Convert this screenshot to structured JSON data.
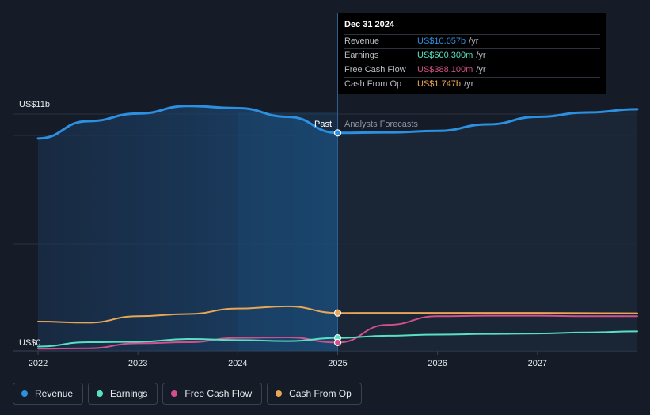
{
  "chart_data": {
    "type": "line",
    "y_axis_labels": {
      "top": "US$11b",
      "bottom": "US$0"
    },
    "ylim": [
      0,
      11
    ],
    "xlim": [
      2022.0,
      2028.0
    ],
    "x_ticks": [
      "2022",
      "2023",
      "2024",
      "2025",
      "2026",
      "2027"
    ],
    "x_tick_values": [
      2022,
      2023,
      2024,
      2025,
      2026,
      2027
    ],
    "past_label": "Past",
    "forecast_label": "Analysts Forecasts",
    "divider_x": 2025.0,
    "series": [
      {
        "name": "Revenue",
        "color": "#2d8fe0",
        "points": [
          [
            2022.0,
            9.8
          ],
          [
            2022.5,
            10.6
          ],
          [
            2023.0,
            10.95
          ],
          [
            2023.5,
            11.3
          ],
          [
            2024.0,
            11.2
          ],
          [
            2024.5,
            10.8
          ],
          [
            2025.0,
            10.057
          ],
          [
            2025.5,
            10.08
          ],
          [
            2026.0,
            10.15
          ],
          [
            2026.5,
            10.45
          ],
          [
            2027.0,
            10.8
          ],
          [
            2027.5,
            11.0
          ],
          [
            2028.0,
            11.15
          ]
        ]
      },
      {
        "name": "Earnings",
        "color": "#59e0c3",
        "points": [
          [
            2022.0,
            0.2
          ],
          [
            2022.5,
            0.4
          ],
          [
            2023.0,
            0.42
          ],
          [
            2023.5,
            0.55
          ],
          [
            2024.0,
            0.5
          ],
          [
            2024.5,
            0.45
          ],
          [
            2025.0,
            0.6003
          ],
          [
            2025.5,
            0.7
          ],
          [
            2026.0,
            0.75
          ],
          [
            2026.5,
            0.78
          ],
          [
            2027.0,
            0.8
          ],
          [
            2027.5,
            0.85
          ],
          [
            2028.0,
            0.9
          ]
        ]
      },
      {
        "name": "Free Cash Flow",
        "color": "#d34f8b",
        "points": [
          [
            2022.0,
            0.1
          ],
          [
            2022.5,
            0.12
          ],
          [
            2023.0,
            0.35
          ],
          [
            2023.5,
            0.4
          ],
          [
            2024.0,
            0.6
          ],
          [
            2024.5,
            0.62
          ],
          [
            2025.0,
            0.3881
          ],
          [
            2025.5,
            1.2
          ],
          [
            2026.0,
            1.6
          ],
          [
            2026.5,
            1.62
          ],
          [
            2027.0,
            1.62
          ],
          [
            2027.5,
            1.6
          ],
          [
            2028.0,
            1.6
          ]
        ]
      },
      {
        "name": "Cash From Op",
        "color": "#e8a657",
        "points": [
          [
            2022.0,
            1.35
          ],
          [
            2022.5,
            1.3
          ],
          [
            2023.0,
            1.6
          ],
          [
            2023.5,
            1.7
          ],
          [
            2024.0,
            1.95
          ],
          [
            2024.5,
            2.05
          ],
          [
            2025.0,
            1.747
          ],
          [
            2025.5,
            1.75
          ],
          [
            2026.0,
            1.75
          ],
          [
            2026.5,
            1.75
          ],
          [
            2027.0,
            1.75
          ],
          [
            2027.5,
            1.74
          ],
          [
            2028.0,
            1.73
          ]
        ]
      }
    ]
  },
  "tooltip": {
    "date": "Dec 31 2024",
    "rows": [
      {
        "label": "Revenue",
        "value": "US$10.057b",
        "unit": "/yr",
        "color": "#2d8fe0"
      },
      {
        "label": "Earnings",
        "value": "US$600.300m",
        "unit": "/yr",
        "color": "#59e0c3"
      },
      {
        "label": "Free Cash Flow",
        "value": "US$388.100m",
        "unit": "/yr",
        "color": "#d34f8b"
      },
      {
        "label": "Cash From Op",
        "value": "US$1.747b",
        "unit": "/yr",
        "color": "#e8a657"
      }
    ]
  },
  "legend": [
    {
      "label": "Revenue",
      "color": "#2d8fe0"
    },
    {
      "label": "Earnings",
      "color": "#59e0c3"
    },
    {
      "label": "Free Cash Flow",
      "color": "#d34f8b"
    },
    {
      "label": "Cash From Op",
      "color": "#e8a657"
    }
  ]
}
